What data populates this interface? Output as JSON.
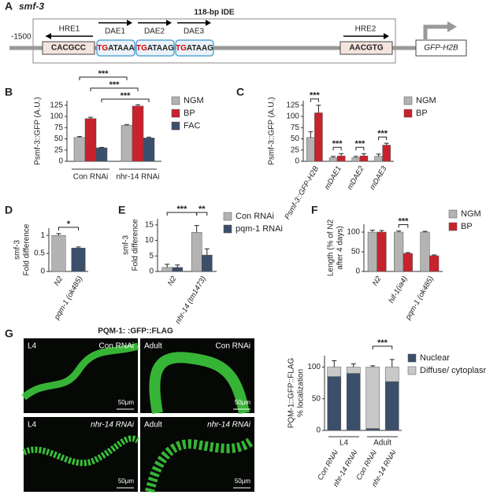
{
  "diagram": {
    "panel": "A",
    "gene": "smf-3",
    "ide_label": "118-bp IDE",
    "position": "-1500",
    "hre1": {
      "label": "HRE1",
      "seq": "CACGCC"
    },
    "daes": [
      {
        "label": "DAE1",
        "highlight": "TG",
        "rest": "ATAAA"
      },
      {
        "label": "DAE2",
        "highlight": "TG",
        "rest": "ATAAG"
      },
      {
        "label": "DAE3",
        "highlight": "TG",
        "rest": "ATAAG"
      }
    ],
    "hre2": {
      "label": "HRE2",
      "seq": "AACGTG"
    },
    "reporter": "GFP-H2B"
  },
  "chart_data": [
    {
      "type": "bar",
      "panel": "B",
      "ylabel": "Psmf-3::GFP (A.U.)",
      "categories": [
        "Con RNAi",
        "nhr-14 RNAi"
      ],
      "series": [
        {
          "name": "NGM",
          "color": "#b3b3b3",
          "values": [
            53,
            80
          ],
          "errors": [
            2,
            2
          ]
        },
        {
          "name": "BP",
          "color": "#c8222c",
          "values": [
            95,
            123
          ],
          "errors": [
            3,
            3
          ]
        },
        {
          "name": "FAC",
          "color": "#3b4f6b",
          "values": [
            30,
            52
          ],
          "errors": [
            1,
            2
          ]
        }
      ],
      "ylim": [
        0,
        135
      ],
      "yticks": [
        0,
        25,
        50,
        75,
        100,
        125
      ],
      "annotations": [
        "***",
        "***",
        "***"
      ]
    },
    {
      "type": "bar",
      "panel": "C",
      "ylabel": "Psmf-3::GFP (A.U.)",
      "categories": [
        "Psmf-3::GFP-H2B",
        "mDAE1",
        "mDAE2",
        "mDAE3"
      ],
      "series": [
        {
          "name": "NGM",
          "color": "#b3b3b3",
          "values": [
            53,
            8,
            8,
            11
          ],
          "errors": [
            13,
            3,
            3,
            5
          ]
        },
        {
          "name": "BP",
          "color": "#c8222c",
          "values": [
            108,
            12,
            12,
            36
          ],
          "errors": [
            17,
            5,
            5,
            4
          ]
        }
      ],
      "ylim": [
        0,
        135
      ],
      "yticks": [
        0,
        25,
        50,
        75,
        100,
        125
      ],
      "annotations": [
        "***",
        "***",
        "***",
        "***"
      ]
    },
    {
      "type": "bar",
      "panel": "D",
      "ylabel": [
        "smf-3",
        "Fold difference"
      ],
      "categories": [
        "N2",
        "pqm-1 (ok485)"
      ],
      "series": [
        {
          "colors": [
            "#b3b3b3",
            "#3b4f6b"
          ],
          "values": [
            1.0,
            0.65
          ],
          "errors": [
            0.05,
            0.03
          ]
        }
      ],
      "ylim": [
        0,
        1.2
      ],
      "yticks": [
        0,
        0.5,
        1
      ],
      "annotations": [
        "*"
      ]
    },
    {
      "type": "bar",
      "panel": "E",
      "ylabel": [
        "smf-3",
        "Fold difference"
      ],
      "categories": [
        "N2",
        "nhr-14 (tm1473)"
      ],
      "series": [
        {
          "name": "Con RNAi",
          "color": "#b3b3b3",
          "values": [
            1.3,
            12.6
          ],
          "errors": [
            1,
            2.2
          ]
        },
        {
          "name": "pqm-1 RNAi",
          "color": "#3b4f6b",
          "values": [
            1.3,
            5.3
          ],
          "errors": [
            0.8,
            2
          ]
        }
      ],
      "ylim": [
        0,
        17
      ],
      "yticks": [
        0,
        5,
        10,
        15
      ],
      "annotations": [
        "***",
        "**"
      ]
    },
    {
      "type": "bar",
      "panel": "F",
      "ylabel": [
        "Length (% of N2",
        "after 4 days)"
      ],
      "categories": [
        "N2",
        "hif-1(ia4)",
        "pqm-1 (ok485)"
      ],
      "series": [
        {
          "name": "NGM",
          "color": "#b3b3b3",
          "values": [
            100,
            100,
            100
          ],
          "errors": [
            5,
            3,
            2
          ]
        },
        {
          "name": "BP",
          "color": "#c8222c",
          "values": [
            100,
            46,
            40
          ],
          "errors": [
            4,
            2,
            2
          ]
        }
      ],
      "ylim": [
        0,
        120
      ],
      "yticks": [
        0,
        50,
        100
      ],
      "annotations": [
        "***"
      ]
    },
    {
      "type": "stacked_bar",
      "panel": "G",
      "ylabel": [
        "PQM-1::GFP::FLAG",
        "% localization"
      ],
      "categories": [
        "Con RNAi",
        "nhr-14 RNAi",
        "Con RNAi",
        "nhr-14 RNAi"
      ],
      "groups": [
        "L4",
        "Adult"
      ],
      "series": [
        {
          "name": "Nuclear",
          "color": "#3b4f6b",
          "values": [
            85,
            90,
            3,
            77
          ],
          "errors": [
            10,
            5,
            2,
            8
          ]
        },
        {
          "name": "Diffuse/ cytoplasmic",
          "color": "#c8c8c8",
          "values": [
            15,
            10,
            97,
            23
          ],
          "errors": [
            10,
            5,
            2,
            12
          ]
        }
      ],
      "ylim": [
        0,
        118
      ],
      "yticks": [
        0,
        50,
        100
      ],
      "annotations": [
        "***"
      ]
    }
  ],
  "micrographs": {
    "title": "PQM-1: :GFP::FLAG",
    "images": [
      {
        "stage": "L4",
        "condition": "Con RNAi",
        "scale": "50μm"
      },
      {
        "stage": "Adult",
        "condition": "Con RNAi",
        "scale": "50μm"
      },
      {
        "stage": "L4",
        "condition": "nhr-14 RNAi",
        "scale": "50μm"
      },
      {
        "stage": "Adult",
        "condition": "nhr-14 RNAi",
        "scale": "50μm"
      }
    ]
  }
}
